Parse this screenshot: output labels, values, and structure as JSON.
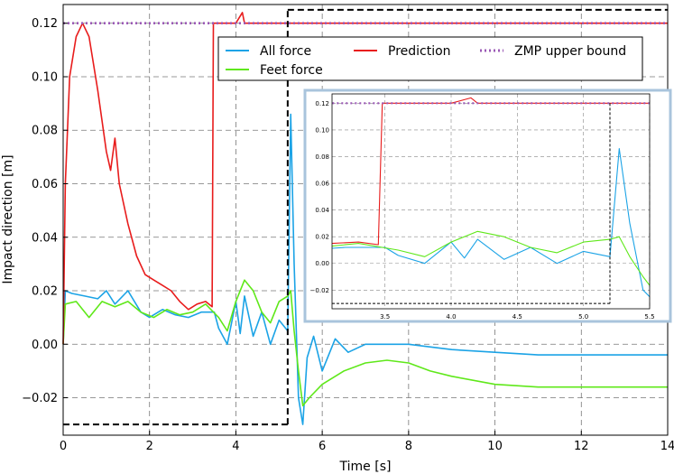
{
  "chart_data": {
    "type": "line",
    "xlabel": "Time [s]",
    "ylabel": "Impact direction [m]",
    "xlim": [
      0,
      14
    ],
    "ylim": [
      -0.034,
      0.127
    ],
    "xticks": [
      0,
      2,
      4,
      6,
      8,
      10,
      12,
      14
    ],
    "xtick_labels": [
      "0",
      "2",
      "4",
      "6",
      "8",
      "10",
      "12",
      "14"
    ],
    "yticks": [
      -0.02,
      0.0,
      0.02,
      0.04,
      0.06,
      0.08,
      0.1,
      0.12
    ],
    "ytick_labels": [
      "−0.02",
      "0.00",
      "0.02",
      "0.04",
      "0.06",
      "0.08",
      "0.10",
      "0.12"
    ],
    "grid": true,
    "legend_position": "top-right",
    "series": [
      {
        "name": "All force",
        "color": "#1ba3e6",
        "x": [
          0,
          0.05,
          0.2,
          0.5,
          0.8,
          1.0,
          1.2,
          1.5,
          1.8,
          2.0,
          2.3,
          2.6,
          2.9,
          3.2,
          3.5,
          3.6,
          3.8,
          4.0,
          4.1,
          4.2,
          4.4,
          4.6,
          4.8,
          5.0,
          5.2,
          5.27,
          5.35,
          5.45,
          5.55,
          5.65,
          5.8,
          6.0,
          6.3,
          6.6,
          7.0,
          7.5,
          8.0,
          9.0,
          10.0,
          11.0,
          12.0,
          13.0,
          14.0
        ],
        "y": [
          0.0,
          0.02,
          0.019,
          0.018,
          0.017,
          0.02,
          0.015,
          0.02,
          0.012,
          0.01,
          0.013,
          0.011,
          0.01,
          0.012,
          0.012,
          0.006,
          0.0,
          0.016,
          0.004,
          0.018,
          0.003,
          0.012,
          0.0,
          0.009,
          0.005,
          0.086,
          0.03,
          -0.02,
          -0.03,
          -0.005,
          0.003,
          -0.01,
          0.002,
          -0.003,
          0.0,
          0.0,
          0.0,
          -0.002,
          -0.003,
          -0.004,
          -0.004,
          -0.004,
          -0.004
        ]
      },
      {
        "name": "Feet force",
        "color": "#5fe81a",
        "x": [
          0,
          0.05,
          0.3,
          0.6,
          0.9,
          1.2,
          1.5,
          1.8,
          2.1,
          2.4,
          2.7,
          3.0,
          3.3,
          3.6,
          3.8,
          4.0,
          4.2,
          4.4,
          4.6,
          4.8,
          5.0,
          5.2,
          5.27,
          5.35,
          5.45,
          5.55,
          5.7,
          6.0,
          6.5,
          7.0,
          7.5,
          8.0,
          8.5,
          9.0,
          10.0,
          11.0,
          12.0,
          13.0,
          14.0
        ],
        "y": [
          0.0,
          0.015,
          0.016,
          0.01,
          0.016,
          0.014,
          0.016,
          0.012,
          0.01,
          0.013,
          0.011,
          0.012,
          0.015,
          0.01,
          0.005,
          0.016,
          0.024,
          0.02,
          0.012,
          0.008,
          0.016,
          0.018,
          0.02,
          0.005,
          -0.01,
          -0.023,
          -0.02,
          -0.015,
          -0.01,
          -0.007,
          -0.006,
          -0.007,
          -0.01,
          -0.012,
          -0.015,
          -0.016,
          -0.016,
          -0.016,
          -0.016
        ]
      },
      {
        "name": "Prediction",
        "color": "#e81c1c",
        "x": [
          0,
          0.05,
          0.15,
          0.3,
          0.45,
          0.6,
          0.8,
          1.0,
          1.1,
          1.2,
          1.3,
          1.5,
          1.7,
          1.9,
          2.1,
          2.3,
          2.5,
          2.7,
          2.9,
          3.1,
          3.3,
          3.45,
          3.48,
          3.5,
          4.0,
          4.15,
          4.2,
          4.5,
          5.0,
          5.5,
          6.0,
          8.0,
          10.0,
          12.0,
          14.0
        ],
        "y": [
          0.0,
          0.06,
          0.1,
          0.115,
          0.12,
          0.115,
          0.095,
          0.072,
          0.065,
          0.077,
          0.06,
          0.045,
          0.033,
          0.026,
          0.024,
          0.022,
          0.02,
          0.016,
          0.013,
          0.015,
          0.016,
          0.014,
          0.12,
          0.12,
          0.12,
          0.124,
          0.12,
          0.12,
          0.12,
          0.12,
          0.12,
          0.12,
          0.12,
          0.12,
          0.12
        ]
      },
      {
        "name": "ZMP  upper bound",
        "color": "#9b59b6",
        "style": "dotted",
        "x": [
          0,
          14
        ],
        "y": [
          0.12,
          0.12
        ]
      }
    ],
    "annotations": {
      "zoom_box_x": [
        0.0,
        5.2
      ],
      "zoom_box_y": [
        -0.03,
        0.125
      ],
      "zoom_box_style": "black dashed"
    },
    "inset": {
      "xlim": [
        3.1,
        5.5
      ],
      "ylim": [
        -0.034,
        0.127
      ],
      "xticks": [
        3.5,
        4.0,
        4.5,
        5.0,
        5.5
      ],
      "xtick_labels": [
        "3.5",
        "4.0",
        "4.5",
        "5.0",
        "5.5"
      ],
      "yticks": [
        -0.02,
        0.0,
        0.02,
        0.04,
        0.06,
        0.08,
        0.1,
        0.12
      ],
      "ytick_labels": [
        "−0.02",
        "0.00",
        "0.02",
        "0.04",
        "0.06",
        "0.08",
        "0.10",
        "0.12"
      ],
      "marker_x": 5.2,
      "border_color": "#a9c4dc"
    }
  }
}
